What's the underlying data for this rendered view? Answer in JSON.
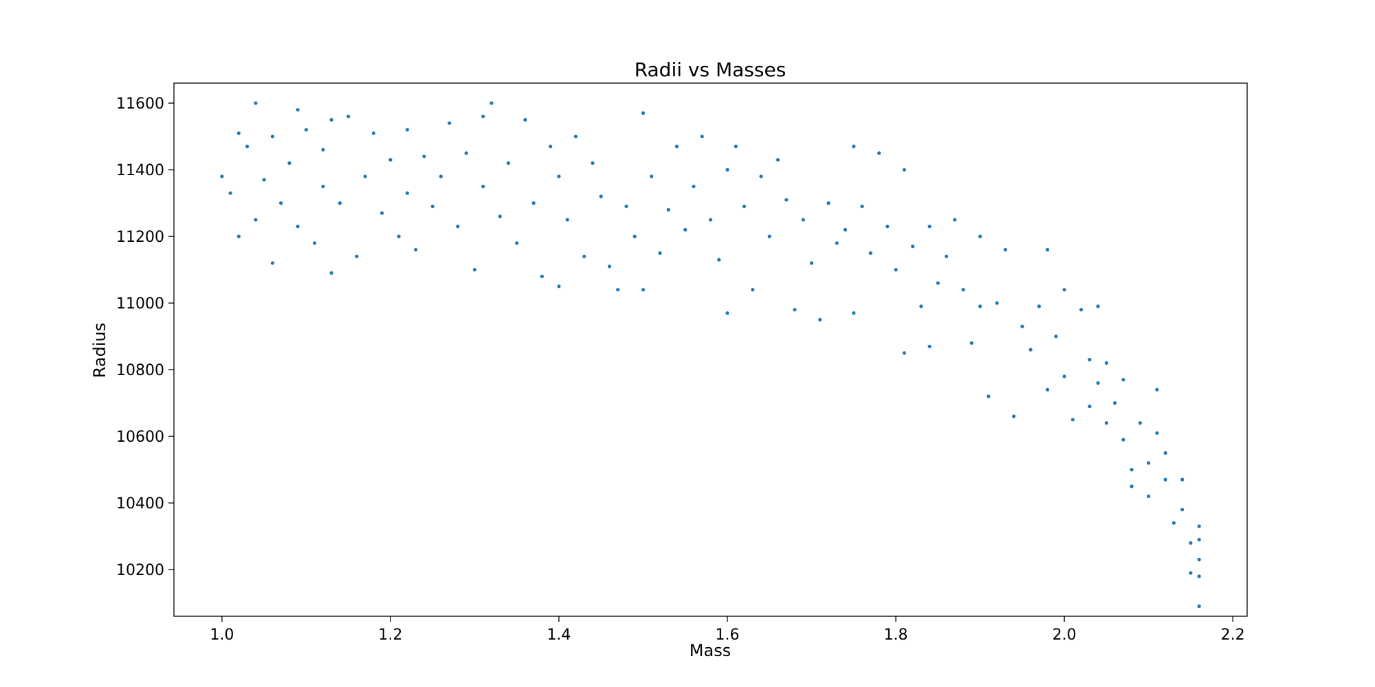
{
  "chart_data": {
    "type": "scatter",
    "title": "Radii vs Masses",
    "xlabel": "Mass",
    "ylabel": "Radius",
    "xlim": [
      0.943,
      2.217
    ],
    "ylim": [
      10060,
      11660
    ],
    "xticks": [
      "1.0",
      "1.2",
      "1.4",
      "1.6",
      "1.8",
      "2.0",
      "2.2"
    ],
    "yticks": [
      "10200",
      "10400",
      "10600",
      "10800",
      "11000",
      "11200",
      "11400",
      "11600"
    ],
    "grid": false,
    "legend": "none",
    "marker_color": "#1f77b4",
    "series": [
      {
        "points": [
          [
            1.0,
            11380
          ],
          [
            1.01,
            11330
          ],
          [
            1.02,
            11510
          ],
          [
            1.02,
            11200
          ],
          [
            1.03,
            11470
          ],
          [
            1.04,
            11600
          ],
          [
            1.04,
            11250
          ],
          [
            1.05,
            11370
          ],
          [
            1.06,
            11500
          ],
          [
            1.06,
            11120
          ],
          [
            1.07,
            11300
          ],
          [
            1.08,
            11420
          ],
          [
            1.09,
            11580
          ],
          [
            1.09,
            11230
          ],
          [
            1.1,
            11520
          ],
          [
            1.11,
            11180
          ],
          [
            1.12,
            11460
          ],
          [
            1.12,
            11350
          ],
          [
            1.13,
            11550
          ],
          [
            1.13,
            11090
          ],
          [
            1.14,
            11300
          ],
          [
            1.15,
            11560
          ],
          [
            1.16,
            11140
          ],
          [
            1.17,
            11380
          ],
          [
            1.18,
            11510
          ],
          [
            1.19,
            11270
          ],
          [
            1.2,
            11430
          ],
          [
            1.21,
            11200
          ],
          [
            1.22,
            11520
          ],
          [
            1.22,
            11330
          ],
          [
            1.23,
            11160
          ],
          [
            1.24,
            11440
          ],
          [
            1.25,
            11290
          ],
          [
            1.26,
            11380
          ],
          [
            1.27,
            11540
          ],
          [
            1.28,
            11230
          ],
          [
            1.29,
            11450
          ],
          [
            1.3,
            11100
          ],
          [
            1.31,
            11350
          ],
          [
            1.31,
            11560
          ],
          [
            1.32,
            11600
          ],
          [
            1.33,
            11260
          ],
          [
            1.34,
            11420
          ],
          [
            1.35,
            11180
          ],
          [
            1.36,
            11550
          ],
          [
            1.37,
            11300
          ],
          [
            1.38,
            11080
          ],
          [
            1.39,
            11470
          ],
          [
            1.4,
            11050
          ],
          [
            1.4,
            11380
          ],
          [
            1.41,
            11250
          ],
          [
            1.42,
            11500
          ],
          [
            1.43,
            11140
          ],
          [
            1.44,
            11420
          ],
          [
            1.45,
            11320
          ],
          [
            1.46,
            11110
          ],
          [
            1.47,
            11040
          ],
          [
            1.48,
            11290
          ],
          [
            1.49,
            11200
          ],
          [
            1.5,
            11040
          ],
          [
            1.5,
            11570
          ],
          [
            1.51,
            11380
          ],
          [
            1.52,
            11150
          ],
          [
            1.53,
            11280
          ],
          [
            1.54,
            11470
          ],
          [
            1.55,
            11220
          ],
          [
            1.56,
            11350
          ],
          [
            1.57,
            11500
          ],
          [
            1.58,
            11250
          ],
          [
            1.59,
            11130
          ],
          [
            1.6,
            10970
          ],
          [
            1.6,
            11400
          ],
          [
            1.61,
            11470
          ],
          [
            1.62,
            11290
          ],
          [
            1.63,
            11040
          ],
          [
            1.64,
            11380
          ],
          [
            1.65,
            11200
          ],
          [
            1.66,
            11430
          ],
          [
            1.67,
            11310
          ],
          [
            1.68,
            10980
          ],
          [
            1.69,
            11250
          ],
          [
            1.7,
            11120
          ],
          [
            1.71,
            10950
          ],
          [
            1.72,
            11300
          ],
          [
            1.73,
            11180
          ],
          [
            1.74,
            11220
          ],
          [
            1.75,
            10970
          ],
          [
            1.75,
            11470
          ],
          [
            1.76,
            11290
          ],
          [
            1.77,
            11150
          ],
          [
            1.78,
            11450
          ],
          [
            1.79,
            11230
          ],
          [
            1.8,
            11100
          ],
          [
            1.81,
            10850
          ],
          [
            1.81,
            11400
          ],
          [
            1.82,
            11170
          ],
          [
            1.83,
            10990
          ],
          [
            1.84,
            10870
          ],
          [
            1.84,
            11230
          ],
          [
            1.85,
            11060
          ],
          [
            1.86,
            11140
          ],
          [
            1.87,
            11250
          ],
          [
            1.88,
            11040
          ],
          [
            1.89,
            10880
          ],
          [
            1.9,
            11200
          ],
          [
            1.9,
            10990
          ],
          [
            1.91,
            10720
          ],
          [
            1.92,
            11000
          ],
          [
            1.93,
            11160
          ],
          [
            1.94,
            10660
          ],
          [
            1.95,
            10930
          ],
          [
            1.96,
            10860
          ],
          [
            1.97,
            10990
          ],
          [
            1.98,
            11160
          ],
          [
            1.98,
            10740
          ],
          [
            1.99,
            10900
          ],
          [
            2.0,
            11040
          ],
          [
            2.0,
            10780
          ],
          [
            2.01,
            10650
          ],
          [
            2.02,
            10980
          ],
          [
            2.03,
            10830
          ],
          [
            2.03,
            10690
          ],
          [
            2.04,
            10760
          ],
          [
            2.04,
            10990
          ],
          [
            2.05,
            10640
          ],
          [
            2.05,
            10820
          ],
          [
            2.06,
            10700
          ],
          [
            2.07,
            10590
          ],
          [
            2.07,
            10770
          ],
          [
            2.08,
            10500
          ],
          [
            2.08,
            10450
          ],
          [
            2.09,
            10640
          ],
          [
            2.1,
            10520
          ],
          [
            2.1,
            10420
          ],
          [
            2.11,
            10740
          ],
          [
            2.11,
            10610
          ],
          [
            2.12,
            10470
          ],
          [
            2.12,
            10550
          ],
          [
            2.13,
            10340
          ],
          [
            2.14,
            10470
          ],
          [
            2.14,
            10380
          ],
          [
            2.15,
            10280
          ],
          [
            2.15,
            10190
          ],
          [
            2.16,
            10330
          ],
          [
            2.16,
            10230
          ],
          [
            2.16,
            10090
          ],
          [
            2.16,
            10180
          ],
          [
            2.16,
            10290
          ]
        ]
      }
    ]
  }
}
